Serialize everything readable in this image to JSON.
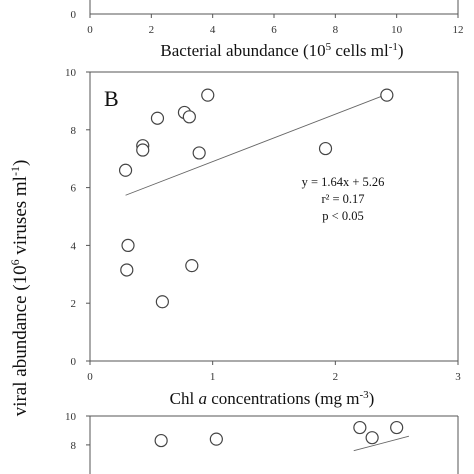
{
  "chart_data": [
    {
      "type": "scatter",
      "panel": "",
      "xlabel_parts": [
        "Bacterial abundance (10",
        "5",
        " cells ml",
        "-1",
        ")"
      ],
      "xticks": [
        "0",
        "2",
        "4",
        "6",
        "8",
        "10",
        "12"
      ],
      "yticks": [
        "0"
      ],
      "xlim": [
        0,
        12
      ],
      "series": [],
      "note": ""
    },
    {
      "type": "scatter",
      "panel": "B",
      "xlabel_parts": [
        "Chl ",
        "a",
        " concentrations (mg m",
        "-3",
        ")"
      ],
      "xticks": [
        "0",
        "1",
        "2",
        "3"
      ],
      "yticks": [
        "0",
        "2",
        "4",
        "6",
        "8",
        "10"
      ],
      "xlim": [
        0,
        3
      ],
      "ylim": [
        0,
        10
      ],
      "grid": false,
      "legend": "none",
      "series": [
        {
          "points": [
            [
              0.96,
              9.2
            ],
            [
              2.42,
              9.2
            ],
            [
              0.77,
              8.6
            ],
            [
              0.55,
              8.4
            ],
            [
              0.81,
              8.45
            ],
            [
              0.43,
              7.45
            ],
            [
              0.43,
              7.3
            ],
            [
              0.89,
              7.2
            ],
            [
              1.92,
              7.35
            ],
            [
              0.29,
              6.6
            ],
            [
              0.31,
              4.0
            ],
            [
              0.3,
              3.15
            ],
            [
              0.83,
              3.3
            ],
            [
              0.59,
              2.05
            ]
          ]
        }
      ],
      "fit": {
        "slope": 1.64,
        "intercept": 5.26,
        "x_range": [
          0.29,
          2.42
        ]
      },
      "annotations": [
        "y = 1.64x + 5.26",
        "r² = 0.17",
        "p < 0.05"
      ]
    },
    {
      "type": "scatter",
      "panel": "",
      "yticks": [
        "10",
        "8"
      ],
      "ylim": [
        0,
        10
      ],
      "series": [
        {
          "points": [
            [
              0.58,
              8.3
            ],
            [
              1.03,
              8.4
            ],
            [
              2.2,
              9.2
            ],
            [
              2.3,
              8.5
            ],
            [
              2.5,
              9.2
            ]
          ]
        }
      ],
      "fit": {
        "x_range": [
          2.15,
          2.6
        ],
        "y_range": [
          7.6,
          8.6
        ]
      }
    }
  ],
  "y_axis_label_parts": [
    "viral abundance (10",
    "6",
    " viruses ml",
    "-1",
    ")"
  ]
}
